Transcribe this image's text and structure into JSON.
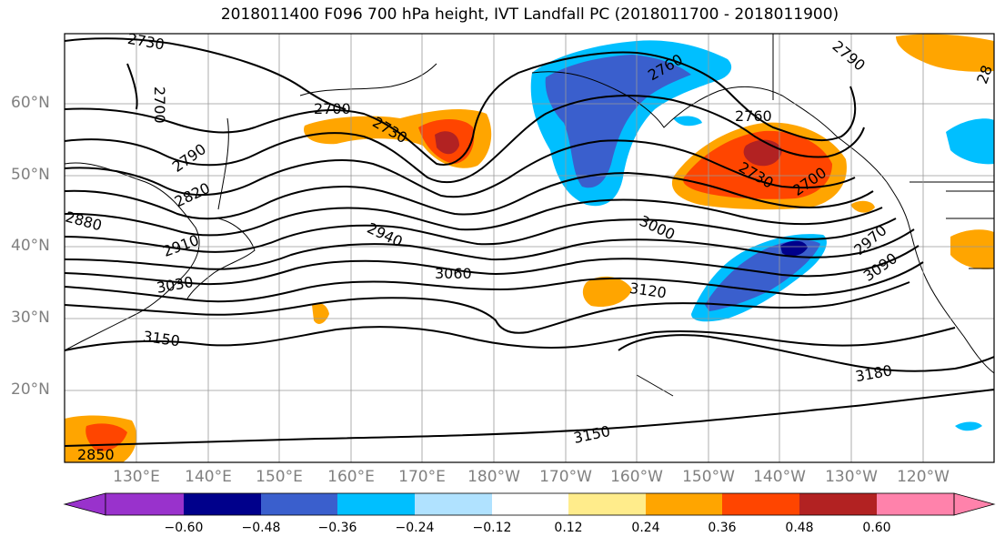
{
  "title": "2018011400 F096 700 hPa height, IVT Landfall PC (2018011700 - 2018011900)",
  "lat_labels": [
    "60°N",
    "50°N",
    "40°N",
    "30°N",
    "20°N"
  ],
  "lon_labels": [
    "130°E",
    "140°E",
    "150°E",
    "160°E",
    "170°E",
    "180°W",
    "170°W",
    "160°W",
    "150°W",
    "140°W",
    "130°W",
    "120°W"
  ],
  "contour_labels": [
    "2730",
    "2700",
    "2760",
    "2790",
    "2700",
    "2730",
    "2760",
    "2730",
    "2700",
    "2790",
    "2820",
    "2880",
    "2910",
    "2940",
    "3000",
    "3060",
    "2970",
    "3090",
    "3120",
    "3030",
    "3150",
    "3180",
    "3150",
    "2850",
    "28"
  ],
  "colorbar": {
    "ticks": [
      "−0.60",
      "−0.48",
      "−0.36",
      "−0.24",
      "−0.12",
      "0.12",
      "0.24",
      "0.36",
      "0.48",
      "0.60"
    ],
    "colors": [
      "#9932CC",
      "#00008B",
      "#3A5FCD",
      "#00BFFF",
      "#B0E2FF",
      "#FFFFFF",
      "#FFEC8B",
      "#FFA500",
      "#FF4500",
      "#B22222",
      "#FF82AB"
    ]
  }
}
